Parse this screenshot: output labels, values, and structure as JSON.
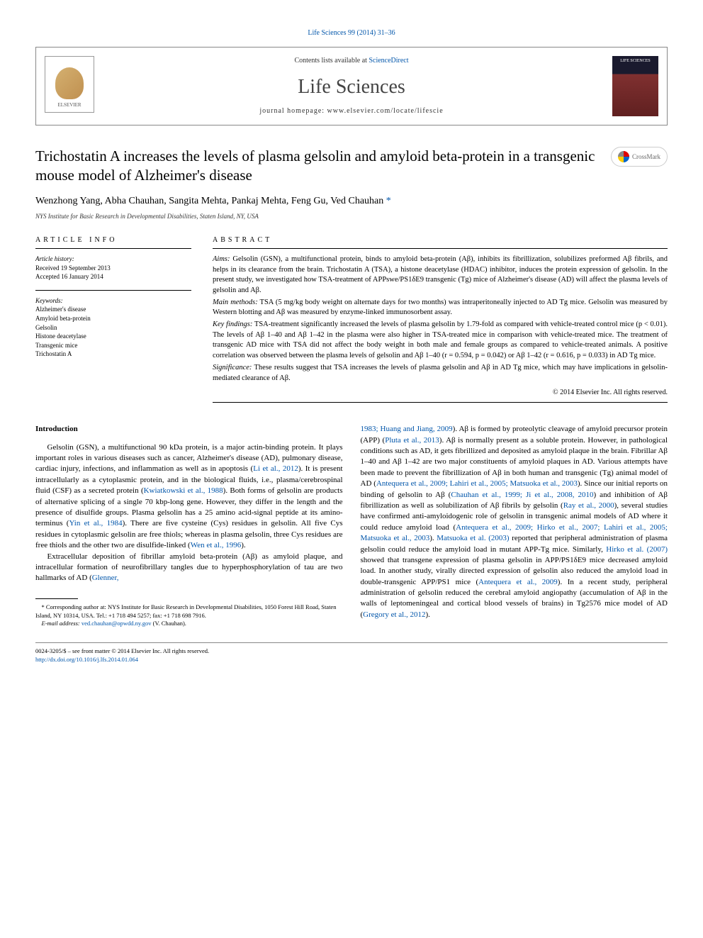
{
  "citation": "Life Sciences 99 (2014) 31–36",
  "header": {
    "contents_pre": "Contents lists available at ",
    "contents_link": "ScienceDirect",
    "journal_name": "Life Sciences",
    "homepage": "journal homepage: www.elsevier.com/locate/lifescie",
    "elsevier": "ELSEVIER",
    "cover_text": "LIFE SCIENCES"
  },
  "title": "Trichostatin A increases the levels of plasma gelsolin and amyloid beta-protein in a transgenic mouse model of Alzheimer's disease",
  "crossmark": "CrossMark",
  "authors": "Wenzhong Yang, Abha Chauhan, Sangita Mehta, Pankaj Mehta, Feng Gu, Ved Chauhan ",
  "author_star": "*",
  "affiliation": "NYS Institute for Basic Research in Developmental Disabilities, Staten Island, NY, USA",
  "article_info": {
    "header": "ARTICLE INFO",
    "history_label": "Article history:",
    "history_received": "Received 19 September 2013",
    "history_accepted": "Accepted 16 January 2014",
    "keywords_label": "Keywords:",
    "keywords": [
      "Alzheimer's disease",
      "Amyloid beta-protein",
      "Gelsolin",
      "Histone deacetylase",
      "Transgenic mice",
      "Trichostatin A"
    ]
  },
  "abstract": {
    "header": "ABSTRACT",
    "aims_label": "Aims:",
    "aims": " Gelsolin (GSN), a multifunctional protein, binds to amyloid beta-protein (Aβ), inhibits its fibrillization, solubilizes preformed Aβ fibrils, and helps in its clearance from the brain. Trichostatin A (TSA), a histone deacetylase (HDAC) inhibitor, induces the protein expression of gelsolin. In the present study, we investigated how TSA-treatment of APPswe/PS1δE9 transgenic (Tg) mice of Alzheimer's disease (AD) will affect the plasma levels of gelsolin and Aβ.",
    "methods_label": "Main methods:",
    "methods": " TSA (5 mg/kg body weight on alternate days for two months) was intraperitoneally injected to AD Tg mice. Gelsolin was measured by Western blotting and Aβ was measured by enzyme-linked immunosorbent assay.",
    "findings_label": "Key findings:",
    "findings": " TSA-treatment significantly increased the levels of plasma gelsolin by 1.79-fold as compared with vehicle-treated control mice (p < 0.01). The levels of Aβ 1–40 and Aβ 1–42 in the plasma were also higher in TSA-treated mice in comparison with vehicle-treated mice. The treatment of transgenic AD mice with TSA did not affect the body weight in both male and female groups as compared to vehicle-treated animals. A positive correlation was observed between the plasma levels of gelsolin and Aβ 1–40 (r = 0.594, p = 0.042) or Aβ 1–42 (r = 0.616, p = 0.033) in AD Tg mice.",
    "significance_label": "Significance:",
    "significance": " These results suggest that TSA increases the levels of plasma gelsolin and Aβ in AD Tg mice, which may have implications in gelsolin-mediated clearance of Aβ.",
    "copyright": "© 2014 Elsevier Inc. All rights reserved."
  },
  "intro": {
    "heading": "Introduction",
    "p1a": "Gelsolin (GSN), a multifunctional 90 kDa protein, is a major actin-binding protein. It plays important roles in various diseases such as cancer, Alzheimer's disease (AD), pulmonary disease, cardiac injury, infections, and inflammation as well as in apoptosis (",
    "c1": "Li et al., 2012",
    "p1b": "). It is present intracellularly as a cytoplasmic protein, and in the biological fluids, i.e., plasma/cerebrospinal fluid (CSF) as a secreted protein (",
    "c2": "Kwiatkowski et al., 1988",
    "p1c": "). Both forms of gelsolin are products of alternative splicing of a single 70 kbp-long gene. However, they differ in the length and the presence of disulfide groups. Plasma gelsolin has a 25 amino acid-signal peptide at its amino-terminus (",
    "c3": "Yin et al., 1984",
    "p1d": "). There are five cysteine (Cys) residues in gelsolin. All five Cys residues in cytoplasmic gelsolin are free thiols; whereas in plasma gelsolin, three Cys residues are free thiols and the other two are disulfide-linked (",
    "c4": "Wen et al., 1996",
    "p1e": ").",
    "p2a": "Extracellular deposition of fibrillar amyloid beta-protein (Aβ) as amyloid plaque, and intracellular formation of neurofibrillary tangles due to hyperphosphorylation of tau are two hallmarks of AD (",
    "c5": "Glenner,",
    "p3a": "1983; Huang and Jiang, 2009",
    "p3b": "). Aβ is formed by proteolytic cleavage of amyloid precursor protein (APP) (",
    "c6": "Pluta et al., 2013",
    "p3c": "). Aβ is normally present as a soluble protein. However, in pathological conditions such as AD, it gets fibrillized and deposited as amyloid plaque in the brain. Fibrillar Aβ 1–40 and Aβ 1–42 are two major constituents of amyloid plaques in AD. Various attempts have been made to prevent the fibrillization of Aβ in both human and transgenic (Tg) animal model of AD (",
    "c7": "Antequera et al., 2009; Lahiri et al., 2005; Matsuoka et al., 2003",
    "p3d": "). Since our initial reports on binding of gelsolin to Aβ (",
    "c8": "Chauhan et al., 1999; Ji et al., 2008, 2010",
    "p3e": ") and inhibition of Aβ fibrillization as well as solubilization of Aβ fibrils by gelsolin (",
    "c9": "Ray et al., 2000",
    "p3f": "), several studies have confirmed anti-amyloidogenic role of gelsolin in transgenic animal models of AD where it could reduce amyloid load (",
    "c10": "Antequera et al., 2009; Hirko et al., 2007; Lahiri et al., 2005; Matsuoka et al., 2003",
    "p3g": "). ",
    "c11": "Matsuoka et al. (2003)",
    "p3h": " reported that peripheral administration of plasma gelsolin could reduce the amyloid load in mutant APP-Tg mice. Similarly, ",
    "c12": "Hirko et al. (2007)",
    "p3i": " showed that transgene expression of plasma gelsolin in APP/PS1δE9 mice decreased amyloid load. In another study, virally directed expression of gelsolin also reduced the amyloid load in double-transgenic APP/PS1 mice (",
    "c13": "Antequera et al., 2009",
    "p3j": "). In a recent study, peripheral administration of gelsolin reduced the cerebral amyloid angiopathy (accumulation of Aβ in the walls of leptomeningeal and cortical blood vessels of brains) in Tg2576 mice model of AD (",
    "c14": "Gregory et al., 2012",
    "p3k": ")."
  },
  "footnotes": {
    "corr": "* Corresponding author at: NYS Institute for Basic Research in Developmental Disabilities, 1050 Forest Hill Road, Staten Island, NY 10314, USA. Tel.: +1 718 494 5257; fax: +1 718 698 7916.",
    "email_label": "E-mail address: ",
    "email": "ved.chauhan@opwdd.ny.gov",
    "email_suffix": " (V. Chauhan)."
  },
  "bottom": {
    "line1": "0024-3205/$ – see front matter © 2014 Elsevier Inc. All rights reserved.",
    "doi": "http://dx.doi.org/10.1016/j.lfs.2014.01.064"
  }
}
